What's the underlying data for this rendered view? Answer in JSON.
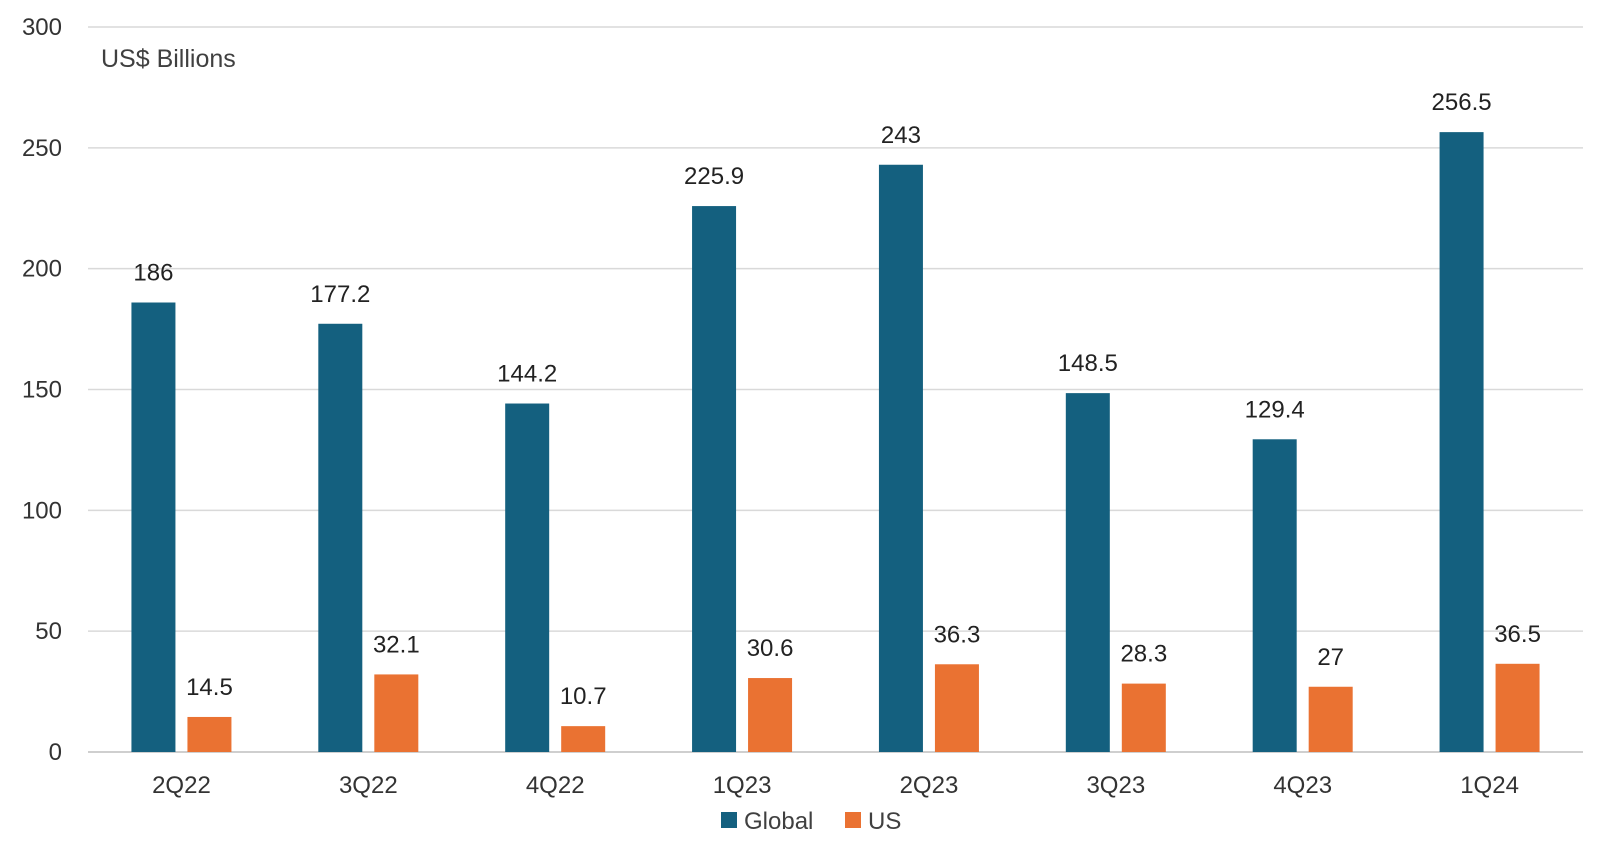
{
  "chart_data": {
    "type": "bar",
    "ylabel": "US$ Billions",
    "ylim": [
      0,
      300
    ],
    "yticks": [
      0,
      50,
      100,
      150,
      200,
      250,
      300
    ],
    "grid": true,
    "legend_position": "bottom",
    "categories": [
      "2Q22",
      "3Q22",
      "4Q22",
      "1Q23",
      "2Q23",
      "3Q23",
      "4Q23",
      "1Q24"
    ],
    "series": [
      {
        "name": "Global",
        "color": "#14607f",
        "values": [
          186,
          177.2,
          144.2,
          225.9,
          243,
          148.5,
          129.4,
          256.5
        ],
        "labels": [
          "186",
          "177.2",
          "144.2",
          "225.9",
          "243",
          "148.5",
          "129.4",
          "256.5"
        ]
      },
      {
        "name": "US",
        "color": "#ea7232",
        "values": [
          14.5,
          32.1,
          10.7,
          30.6,
          36.3,
          28.3,
          27,
          36.5
        ],
        "labels": [
          "14.5",
          "32.1",
          "10.7",
          "30.6",
          "36.3",
          "28.3",
          "27",
          "36.5"
        ]
      }
    ]
  }
}
